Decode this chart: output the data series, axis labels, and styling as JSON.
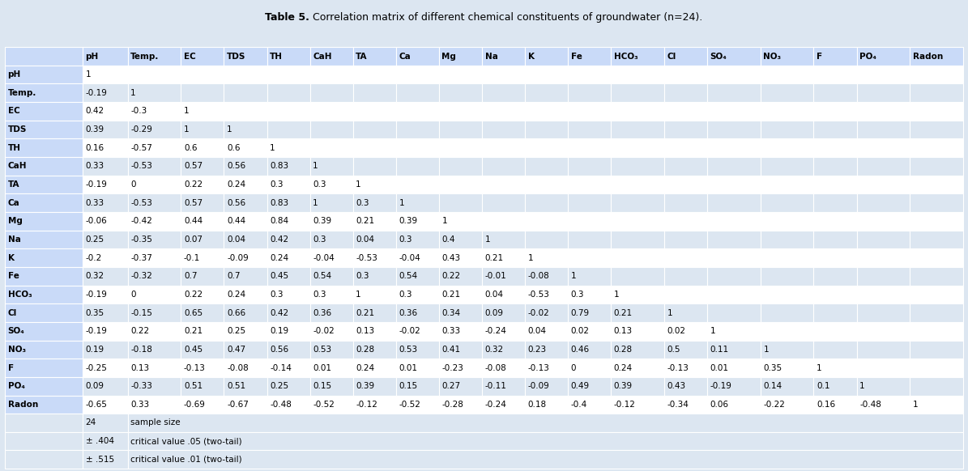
{
  "title_bold": "Table 5.",
  "title_normal": " Correlation matrix of different chemical constituents of groundwater (n=24).",
  "columns": [
    "",
    "pH",
    "Temp.",
    "EC",
    "TDS",
    "TH",
    "CaH",
    "TA",
    "Ca",
    "Mg",
    "Na",
    "K",
    "Fe",
    "HCO₃",
    "Cl",
    "SO₄",
    "NO₃",
    "F",
    "PO₄",
    "Radon"
  ],
  "rows": [
    [
      "pH",
      "1",
      "",
      "",
      "",
      "",
      "",
      "",
      "",
      "",
      "",
      "",
      "",
      "",
      "",
      "",
      "",
      "",
      "",
      ""
    ],
    [
      "Temp.",
      "-0.19",
      "1",
      "",
      "",
      "",
      "",
      "",
      "",
      "",
      "",
      "",
      "",
      "",
      "",
      "",
      "",
      "",
      "",
      ""
    ],
    [
      "EC",
      "0.42",
      "-0.3",
      "1",
      "",
      "",
      "",
      "",
      "",
      "",
      "",
      "",
      "",
      "",
      "",
      "",
      "",
      "",
      "",
      ""
    ],
    [
      "TDS",
      "0.39",
      "-0.29",
      "1",
      "1",
      "",
      "",
      "",
      "",
      "",
      "",
      "",
      "",
      "",
      "",
      "",
      "",
      "",
      "",
      ""
    ],
    [
      "TH",
      "0.16",
      "-0.57",
      "0.6",
      "0.6",
      "1",
      "",
      "",
      "",
      "",
      "",
      "",
      "",
      "",
      "",
      "",
      "",
      "",
      "",
      ""
    ],
    [
      "CaH",
      "0.33",
      "-0.53",
      "0.57",
      "0.56",
      "0.83",
      "1",
      "",
      "",
      "",
      "",
      "",
      "",
      "",
      "",
      "",
      "",
      "",
      "",
      ""
    ],
    [
      "TA",
      "-0.19",
      "0",
      "0.22",
      "0.24",
      "0.3",
      "0.3",
      "1",
      "",
      "",
      "",
      "",
      "",
      "",
      "",
      "",
      "",
      "",
      "",
      ""
    ],
    [
      "Ca",
      "0.33",
      "-0.53",
      "0.57",
      "0.56",
      "0.83",
      "1",
      "0.3",
      "1",
      "",
      "",
      "",
      "",
      "",
      "",
      "",
      "",
      "",
      "",
      ""
    ],
    [
      "Mg",
      "-0.06",
      "-0.42",
      "0.44",
      "0.44",
      "0.84",
      "0.39",
      "0.21",
      "0.39",
      "1",
      "",
      "",
      "",
      "",
      "",
      "",
      "",
      "",
      "",
      ""
    ],
    [
      "Na",
      "0.25",
      "-0.35",
      "0.07",
      "0.04",
      "0.42",
      "0.3",
      "0.04",
      "0.3",
      "0.4",
      "1",
      "",
      "",
      "",
      "",
      "",
      "",
      "",
      "",
      ""
    ],
    [
      "K",
      "-0.2",
      "-0.37",
      "-0.1",
      "-0.09",
      "0.24",
      "-0.04",
      "-0.53",
      "-0.04",
      "0.43",
      "0.21",
      "1",
      "",
      "",
      "",
      "",
      "",
      "",
      "",
      ""
    ],
    [
      "Fe",
      "0.32",
      "-0.32",
      "0.7",
      "0.7",
      "0.45",
      "0.54",
      "0.3",
      "0.54",
      "0.22",
      "-0.01",
      "-0.08",
      "1",
      "",
      "",
      "",
      "",
      "",
      "",
      ""
    ],
    [
      "HCO₃",
      "-0.19",
      "0",
      "0.22",
      "0.24",
      "0.3",
      "0.3",
      "1",
      "0.3",
      "0.21",
      "0.04",
      "-0.53",
      "0.3",
      "1",
      "",
      "",
      "",
      "",
      "",
      ""
    ],
    [
      "Cl",
      "0.35",
      "-0.15",
      "0.65",
      "0.66",
      "0.42",
      "0.36",
      "0.21",
      "0.36",
      "0.34",
      "0.09",
      "-0.02",
      "0.79",
      "0.21",
      "1",
      "",
      "",
      "",
      "",
      ""
    ],
    [
      "SO₄",
      "-0.19",
      "0.22",
      "0.21",
      "0.25",
      "0.19",
      "-0.02",
      "0.13",
      "-0.02",
      "0.33",
      "-0.24",
      "0.04",
      "0.02",
      "0.13",
      "0.02",
      "1",
      "",
      "",
      "",
      ""
    ],
    [
      "NO₃",
      "0.19",
      "-0.18",
      "0.45",
      "0.47",
      "0.56",
      "0.53",
      "0.28",
      "0.53",
      "0.41",
      "0.32",
      "0.23",
      "0.46",
      "0.28",
      "0.5",
      "0.11",
      "1",
      "",
      "",
      ""
    ],
    [
      "F",
      "-0.25",
      "0.13",
      "-0.13",
      "-0.08",
      "-0.14",
      "0.01",
      "0.24",
      "0.01",
      "-0.23",
      "-0.08",
      "-0.13",
      "0",
      "0.24",
      "-0.13",
      "0.01",
      "0.35",
      "1",
      "",
      ""
    ],
    [
      "PO₄",
      "0.09",
      "-0.33",
      "0.51",
      "0.51",
      "0.25",
      "0.15",
      "0.39",
      "0.15",
      "0.27",
      "-0.11",
      "-0.09",
      "0.49",
      "0.39",
      "0.43",
      "-0.19",
      "0.14",
      "0.1",
      "1",
      ""
    ],
    [
      "Radon",
      "-0.65",
      "0.33",
      "-0.69",
      "-0.67",
      "-0.48",
      "-0.52",
      "-0.12",
      "-0.52",
      "-0.28",
      "-0.24",
      "0.18",
      "-0.4",
      "-0.12",
      "-0.34",
      "0.06",
      "-0.22",
      "0.16",
      "-0.48",
      "1"
    ]
  ],
  "footer_rows": [
    [
      "",
      "24",
      "sample size"
    ],
    [
      "",
      "± .404",
      "critical value .05 (two-tail)"
    ],
    [
      "",
      "± .515",
      "critical value .01 (two-tail)"
    ]
  ],
  "header_bg": "#c9daf8",
  "row_label_bg": "#c9daf8",
  "data_bg_even": "#ffffff",
  "data_bg_odd": "#dce6f1",
  "footer_bg": "#dce6f1",
  "border_color": "#ffffff",
  "text_color": "#000000",
  "font_size": 7.5,
  "header_font_size": 7.5,
  "col_widths_raw": [
    3.8,
    2.2,
    2.6,
    2.1,
    2.1,
    2.1,
    2.1,
    2.1,
    2.1,
    2.1,
    2.1,
    2.1,
    2.1,
    2.6,
    2.1,
    2.6,
    2.6,
    2.1,
    2.6,
    2.6
  ]
}
